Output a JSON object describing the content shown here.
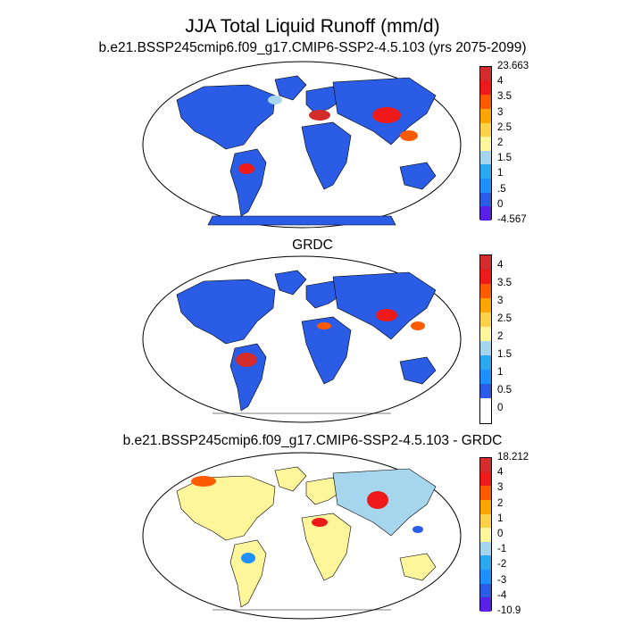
{
  "title": "JJA Total Liquid Runoff (mm/d)",
  "panels": [
    {
      "subtitle": "b.e21.BSSP245cmip6.f09_g17.CMIP6-SSP2-4.5.103 (yrs 2075-2099)",
      "colorbar_labels": [
        "23.663",
        "4",
        "3.5",
        "3",
        "2.5",
        "2",
        "1.5",
        "1",
        ".5",
        "0",
        "-4.567"
      ]
    },
    {
      "subtitle": "GRDC",
      "colorbar_labels": [
        "4",
        "3.5",
        "3",
        "2.5",
        "2",
        "1.5",
        "1",
        "0.5",
        "0"
      ]
    },
    {
      "subtitle": "b.e21.BSSP245cmip6.f09_g17.CMIP6-SSP2-4.5.103 - GRDC",
      "colorbar_labels": [
        "18.212",
        "4",
        "3",
        "2",
        "1",
        "0",
        "-1",
        "-2",
        "-3",
        "-4",
        "-10.9"
      ]
    }
  ],
  "colors": {
    "scale": [
      "#d42b2b",
      "#ee1a1a",
      "#ff5a00",
      "#ffa500",
      "#ffd24a",
      "#fff59a",
      "#a6d6ee",
      "#2aa9ee",
      "#1e90ff",
      "#2a5ce6",
      "#5a1fe8"
    ],
    "ocean": "#ffffff",
    "coast": "#000000"
  }
}
